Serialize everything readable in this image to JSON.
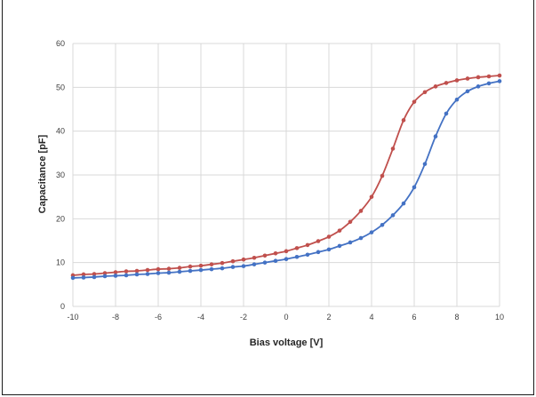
{
  "chart_data": {
    "type": "line",
    "title": "",
    "xlabel": "Bias voltage  [V]",
    "ylabel": "Capacitance [pF]",
    "xlim": [
      -10,
      10
    ],
    "ylim": [
      0,
      60
    ],
    "x_ticks": [
      "-10",
      "-8",
      "-6",
      "-4",
      "-2",
      "0",
      "2",
      "4",
      "6",
      "8",
      "10"
    ],
    "y_ticks": [
      "0",
      "10",
      "20",
      "30",
      "40",
      "50",
      "60"
    ],
    "grid": true,
    "legend": "none",
    "series": [
      {
        "color": "#c0504d",
        "marker": "circle",
        "x": [
          -10,
          -9.5,
          -9,
          -8.5,
          -8,
          -7.5,
          -7,
          -6.5,
          -6,
          -5.5,
          -5,
          -4.5,
          -4,
          -3.5,
          -3,
          -2.5,
          -2,
          -1.5,
          -1,
          -0.5,
          0,
          0.5,
          1,
          1.5,
          2,
          2.5,
          3,
          3.5,
          4,
          4.5,
          5,
          5.5,
          6,
          6.5,
          7,
          7.5,
          8,
          8.5,
          9,
          9.5,
          10
        ],
        "y": [
          7.1,
          7.3,
          7.4,
          7.6,
          7.8,
          8.0,
          8.1,
          8.3,
          8.5,
          8.6,
          8.8,
          9.1,
          9.3,
          9.6,
          9.9,
          10.3,
          10.7,
          11.1,
          11.6,
          12.1,
          12.6,
          13.3,
          14.0,
          14.9,
          15.9,
          17.3,
          19.3,
          21.8,
          25.0,
          29.8,
          36.0,
          42.5,
          46.7,
          48.9,
          50.2,
          51.0,
          51.6,
          52.0,
          52.3,
          52.5,
          52.7
        ]
      },
      {
        "color": "#4472c4",
        "marker": "circle",
        "x": [
          -10,
          -9.5,
          -9,
          -8.5,
          -8,
          -7.5,
          -7,
          -6.5,
          -6,
          -5.5,
          -5,
          -4.5,
          -4,
          -3.5,
          -3,
          -2.5,
          -2,
          -1.5,
          -1,
          -0.5,
          0,
          0.5,
          1,
          1.5,
          2,
          2.5,
          3,
          3.5,
          4,
          4.5,
          5,
          5.5,
          6,
          6.5,
          7,
          7.5,
          8,
          8.5,
          9,
          9.5,
          10
        ],
        "y": [
          6.5,
          6.6,
          6.7,
          6.9,
          7.0,
          7.1,
          7.3,
          7.4,
          7.6,
          7.7,
          7.9,
          8.1,
          8.3,
          8.5,
          8.7,
          9.0,
          9.2,
          9.6,
          10.0,
          10.4,
          10.8,
          11.3,
          11.8,
          12.4,
          13.0,
          13.8,
          14.6,
          15.6,
          16.9,
          18.6,
          20.8,
          23.5,
          27.2,
          32.5,
          38.8,
          44.0,
          47.2,
          49.1,
          50.2,
          50.9,
          51.4
        ]
      }
    ]
  }
}
